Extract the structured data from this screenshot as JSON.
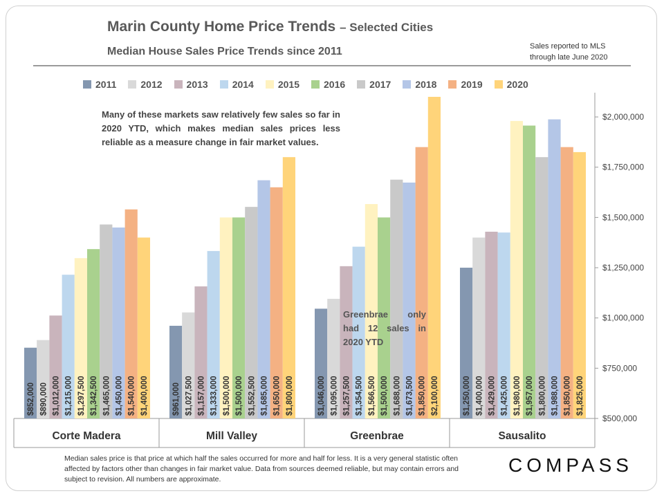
{
  "header": {
    "title": "Marin County Home Price Trends",
    "title_suffix": "– Selected Cities",
    "subtitle": "Median House Sales Price Trends since 2011",
    "note_line1": "Sales reported to MLS",
    "note_line2": "through late June 2020"
  },
  "annotations": {
    "top": "Many of these markets saw relatively few sales so far in 2020 YTD, which makes median sales prices less reliable as a measure change in fair market values.",
    "greenbrae": "Greenbrae only had 12 sales in 2020 YTD"
  },
  "footer": {
    "text": "Median sales price is that price at which half the sales occurred for more and half for less. It is a very general statistic often affected by factors other than changes in fair market value. Data from sources deemed reliable, but may contain errors and subject to revision. All numbers are approximate."
  },
  "logo": {
    "text": "COMPASS"
  },
  "chart_data": {
    "type": "bar",
    "categories": [
      "Corte Madera",
      "Mill Valley",
      "Greenbrae",
      "Sausalito"
    ],
    "series": [
      {
        "name": "2011",
        "color": "#8497b0",
        "values": [
          852000,
          961000,
          1046000,
          1250000
        ],
        "labels": [
          "$852,000",
          "$961,000",
          "$1,046,000",
          "$1,250,000"
        ]
      },
      {
        "name": "2012",
        "color": "#d9d9d9",
        "values": [
          890000,
          1027500,
          1095000,
          1400000
        ],
        "labels": [
          "$890,000",
          "$1,027,500",
          "$1,095,000",
          "$1,400,000"
        ]
      },
      {
        "name": "2013",
        "color": "#c9b4bc",
        "values": [
          1012000,
          1157000,
          1257500,
          1429000
        ],
        "labels": [
          "$1,012,000",
          "$1,157,000",
          "$1,257,500",
          "$1,429,000"
        ]
      },
      {
        "name": "2014",
        "color": "#bdd7ee",
        "values": [
          1215000,
          1333000,
          1354500,
          1425000
        ],
        "labels": [
          "$1,215,000",
          "$1,333,000",
          "$1,354,500",
          "$1,425,000"
        ]
      },
      {
        "name": "2015",
        "color": "#fff2c0",
        "values": [
          1297500,
          1500000,
          1566500,
          1980000
        ],
        "labels": [
          "$1,297,500",
          "$1,500,000",
          "$1,566,500",
          "$1,980,000"
        ]
      },
      {
        "name": "2016",
        "color": "#a9d18e",
        "values": [
          1342500,
          1500000,
          1500000,
          1957000
        ],
        "labels": [
          "$1,342,500",
          "$1,500,000",
          "$1,500,000",
          "$1,957,000"
        ]
      },
      {
        "name": "2017",
        "color": "#c9c9c9",
        "values": [
          1465000,
          1552500,
          1688000,
          1800000
        ],
        "labels": [
          "$1,465,000",
          "$1,552,500",
          "$1,688,000",
          "$1,800,000"
        ]
      },
      {
        "name": "2018",
        "color": "#b4c6e7",
        "values": [
          1450000,
          1685000,
          1673500,
          1988000
        ],
        "labels": [
          "$1,450,000",
          "$1,685,000",
          "$1,673,500",
          "$1,988,000"
        ]
      },
      {
        "name": "2019",
        "color": "#f4b183",
        "values": [
          1540000,
          1650000,
          1850000,
          1850000
        ],
        "labels": [
          "$1,540,000",
          "$1,650,000",
          "$1,850,000",
          "$1,850,000"
        ]
      },
      {
        "name": "2020",
        "color": "#ffd47a",
        "values": [
          1400000,
          1800000,
          2100000,
          1825000
        ],
        "labels": [
          "$1,400,000",
          "$1,800,000",
          "$2,100,000",
          "$1,825,000"
        ]
      }
    ],
    "ylim": [
      500000,
      2100000
    ],
    "yticks": [
      500000,
      750000,
      1000000,
      1250000,
      1500000,
      1750000,
      2000000
    ],
    "ytick_labels": [
      "$500,000",
      "$750,000",
      "$1,000,000",
      "$1,250,000",
      "$1,500,000",
      "$1,750,000",
      "$2,000,000"
    ],
    "legend_position": "top",
    "yaxis_side": "right",
    "grid": false
  }
}
